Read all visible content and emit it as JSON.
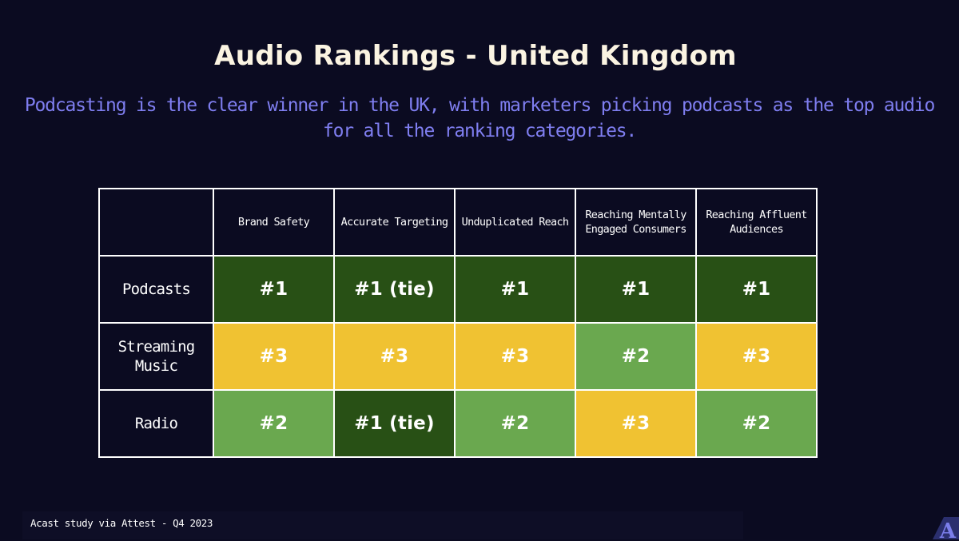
{
  "title": "Audio Rankings - United Kingdom",
  "subtitle": "Podcasting is the clear winner in the UK, with marketers picking podcasts as the top audio for all the ranking categories.",
  "footer": "Acast study via Attest - Q4 2023",
  "colors": {
    "background": "#0b0b21",
    "rank_1": "#285015",
    "rank_2": "#6aa84f",
    "rank_3": "#f0c232",
    "subtitle": "#7f7ef0",
    "title": "#fbf4e2",
    "logo": "#7b7eea"
  },
  "logo_icon": "acast-logo-icon",
  "chart_data": {
    "type": "table",
    "columns": [
      "Brand Safety",
      "Accurate Targeting",
      "Unduplicated Reach",
      "Reaching Mentally Engaged Consumers",
      "Reaching Affluent Audiences"
    ],
    "rows": [
      {
        "label": "Podcasts",
        "values": [
          "#1",
          "#1 (tie)",
          "#1",
          "#1",
          "#1"
        ],
        "ranks": [
          1,
          1,
          1,
          1,
          1
        ]
      },
      {
        "label": "Streaming Music",
        "values": [
          "#3",
          "#3",
          "#3",
          "#2",
          "#3"
        ],
        "ranks": [
          3,
          3,
          3,
          2,
          3
        ]
      },
      {
        "label": "Radio",
        "values": [
          "#2",
          "#1 (tie)",
          "#2",
          "#3",
          "#2"
        ],
        "ranks": [
          2,
          1,
          2,
          3,
          2
        ]
      }
    ]
  }
}
